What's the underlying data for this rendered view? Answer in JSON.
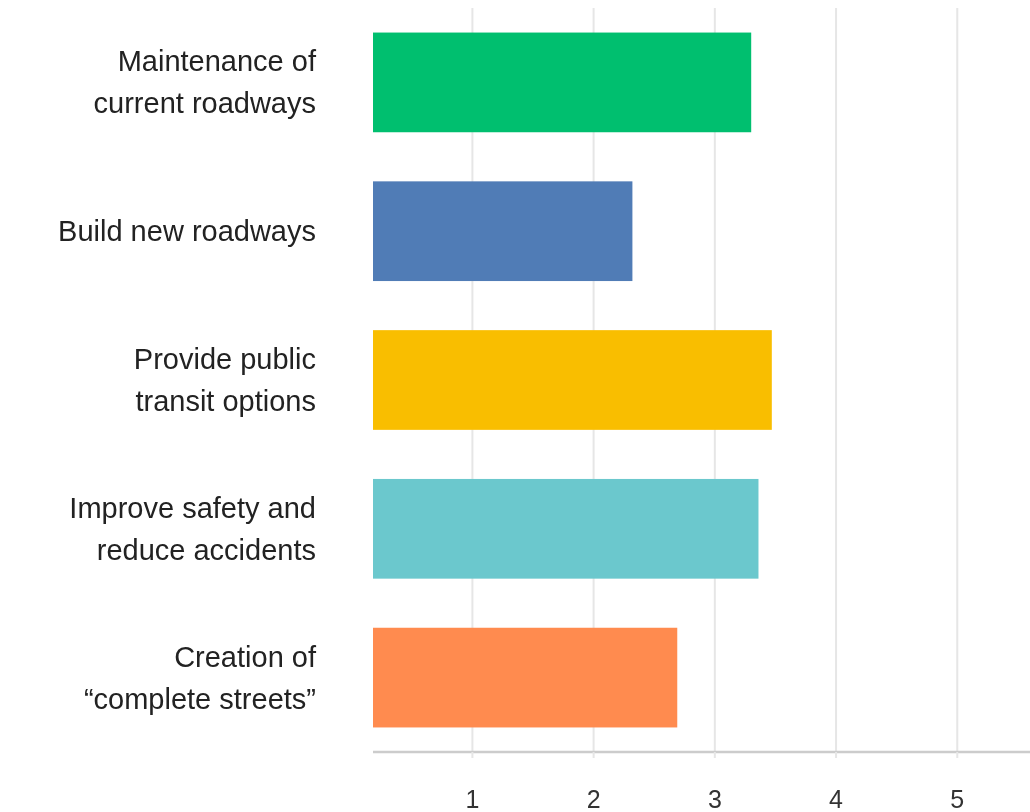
{
  "chart_data": {
    "type": "bar",
    "orientation": "horizontal",
    "categories": [
      "Maintenance of current roadways",
      "Build new roadways",
      "Provide public transit options",
      "Improve safety and reduce accidents",
      "Creation of “complete streets”"
    ],
    "values": [
      3.3,
      2.32,
      3.47,
      3.36,
      2.69
    ],
    "colors": [
      "#00bf6f",
      "#507cb6",
      "#f9be00",
      "#6bc8cd",
      "#ff8b4f"
    ],
    "xlim": [
      0.18,
      5.6
    ],
    "xticks": [
      1,
      2,
      3,
      4,
      5
    ],
    "grid": "x"
  }
}
